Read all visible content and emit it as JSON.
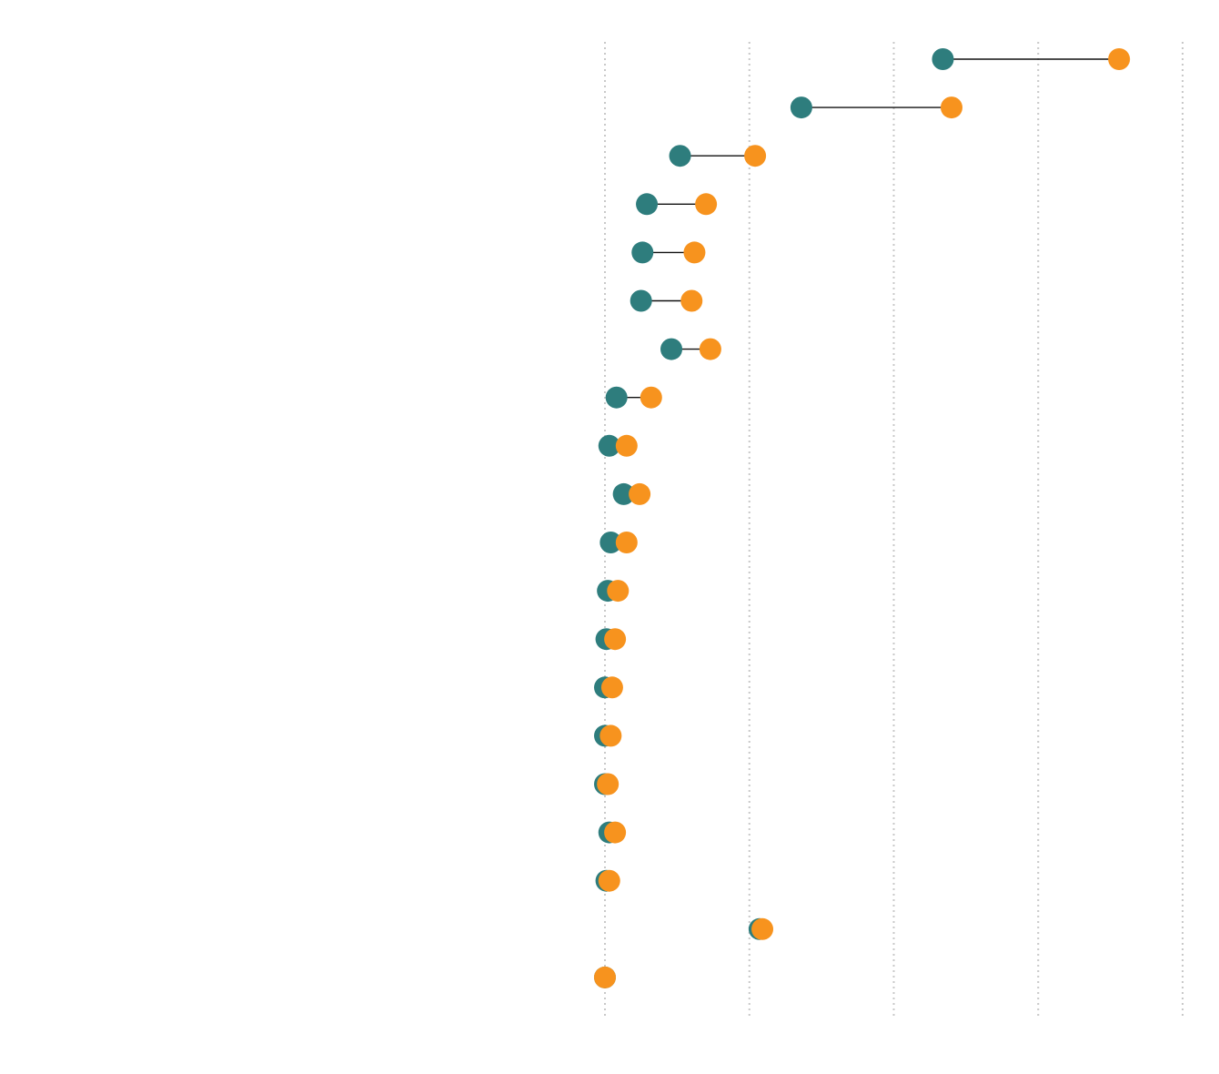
{
  "chart_data": {
    "type": "dumbbell",
    "title": "",
    "xlabel": "",
    "ylabel": "",
    "xlim": [
      0,
      40
    ],
    "grid": "vertical dotted",
    "legend": "none",
    "colors": {
      "start": "#2e7d7d",
      "end": "#f7931e"
    },
    "categories": [
      "",
      "",
      "",
      "",
      "",
      "",
      "",
      "",
      "",
      "",
      "",
      "",
      "",
      "",
      "",
      "",
      "",
      "",
      "",
      ""
    ],
    "series": [
      {
        "values": [
          23.4,
          13.6,
          5.2,
          2.9,
          2.6,
          2.5,
          4.6,
          0.8,
          0.3,
          1.3,
          0.4,
          0.2,
          0.1,
          0.0,
          0.0,
          0.0,
          0.3,
          0.1,
          10.7,
          0.0
        ]
      },
      {
        "values": [
          35.6,
          24.0,
          10.4,
          7.0,
          6.2,
          6.0,
          7.3,
          3.2,
          1.5,
          2.4,
          1.5,
          0.9,
          0.7,
          0.5,
          0.4,
          0.2,
          0.7,
          0.3,
          10.9,
          0.0
        ]
      }
    ]
  }
}
